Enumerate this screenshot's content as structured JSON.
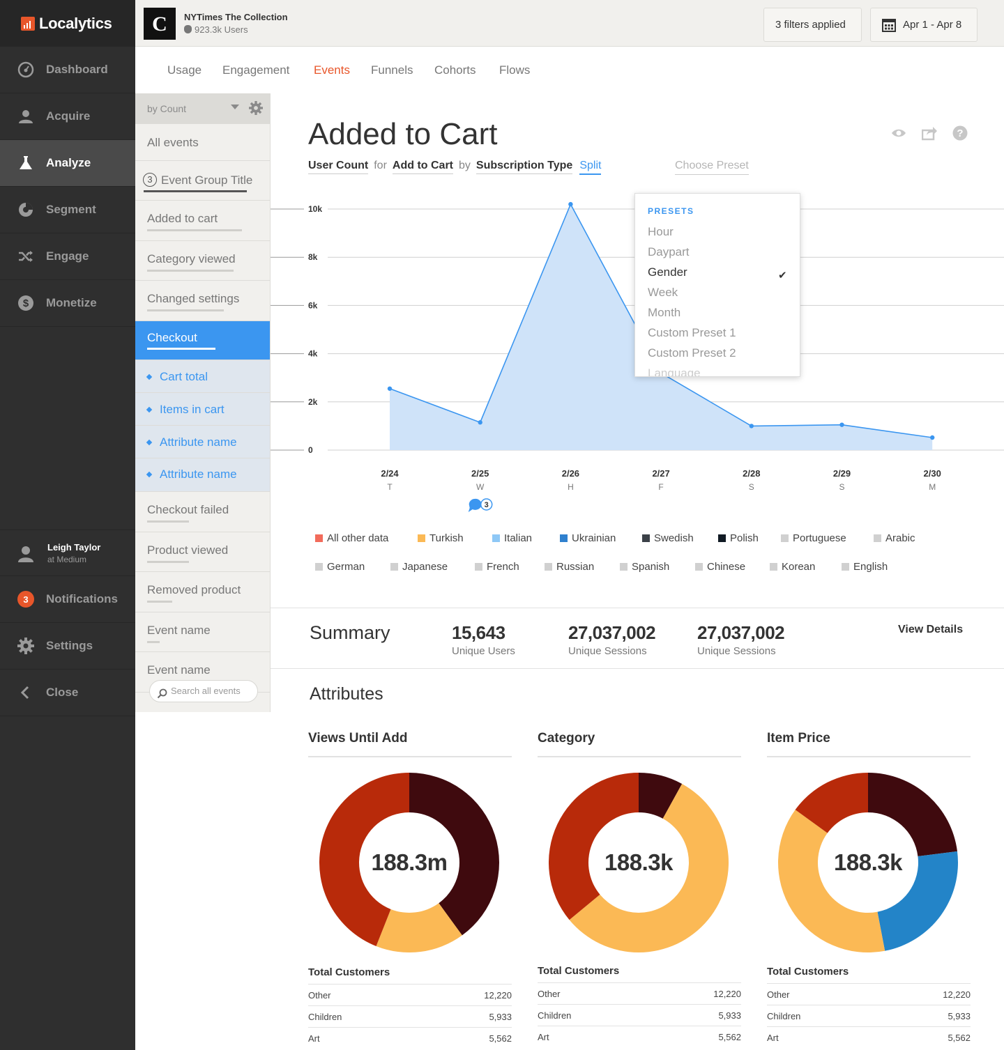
{
  "brand": {
    "name": "Localytics"
  },
  "nav": {
    "items": [
      {
        "label": "Dashboard",
        "icon": "dashboard-gauge-icon"
      },
      {
        "label": "Acquire",
        "icon": "user-icon"
      },
      {
        "label": "Analyze",
        "icon": "flask-icon",
        "active": true
      },
      {
        "label": "Segment",
        "icon": "pie-icon"
      },
      {
        "label": "Engage",
        "icon": "shuffle-icon"
      },
      {
        "label": "Monetize",
        "icon": "dollar-icon"
      }
    ],
    "user": {
      "name": "Leigh Taylor",
      "org": "at Medium"
    },
    "notifications": {
      "label": "Notifications",
      "count": "3"
    },
    "settings": "Settings",
    "close": "Close"
  },
  "topbar": {
    "app_name": "NYTimes The Collection",
    "app_users": "923.3k Users",
    "filters": "3 filters applied",
    "date_range": "Apr 1 - Apr 8"
  },
  "tabs": [
    "Usage",
    "Engagement",
    "Events",
    "Funnels",
    "Cohorts",
    "Flows"
  ],
  "active_tab": "Events",
  "events_panel": {
    "sort_label": "by Count",
    "group_badge": "3",
    "items": [
      "All events",
      "Event Group Title",
      "Added to cart",
      "Category viewed",
      "Changed settings",
      "Checkout",
      "Cart total",
      "Items in cart",
      "Attribute name",
      "Attribute name",
      "Checkout failed",
      "Product viewed",
      "Removed product",
      "Event name",
      "Event name"
    ],
    "search_placeholder": "Search all events"
  },
  "main": {
    "title": "Added to Cart",
    "query": {
      "metric": "User Count",
      "for": "for",
      "event": "Add to Cart",
      "by": "by",
      "attribute": "Subscription Type",
      "split": "Split"
    },
    "choose_preset": "Choose Preset"
  },
  "presets": {
    "header": "PRESETS",
    "options": [
      "Hour",
      "Daypart",
      "Gender",
      "Week",
      "Month",
      "Custom Preset 1",
      "Custom Preset 2",
      "Language"
    ],
    "selected": "Gender"
  },
  "chart_data": {
    "type": "area",
    "x": [
      "2/24",
      "2/25",
      "2/26",
      "2/27",
      "2/28",
      "2/29",
      "2/30"
    ],
    "x_sublabels": [
      "T",
      "W",
      "H",
      "F",
      "S",
      "S",
      "M"
    ],
    "y_ticks": [
      "0",
      "2k",
      "4k",
      "6k",
      "8k",
      "10k"
    ],
    "ylim": [
      0,
      10000
    ],
    "series": [
      {
        "values": [
          2550,
          1150,
          10200,
          3200,
          1000,
          1050,
          520
        ]
      }
    ],
    "annotation": {
      "x": "2/25",
      "count": "3"
    },
    "color": "#3b96f0",
    "fill": "#cfe3f9",
    "grid": true
  },
  "legend": [
    {
      "label": "All other data",
      "color": "#f26b5b"
    },
    {
      "label": "Turkish",
      "color": "#fbb955"
    },
    {
      "label": "Italian",
      "color": "#8ec8f6"
    },
    {
      "label": "Ukrainian",
      "color": "#2f80ce"
    },
    {
      "label": "Swedish",
      "color": "#3b4148"
    },
    {
      "label": "Polish",
      "color": "#111a24"
    },
    {
      "label": "Portuguese",
      "color": "#d0d0d0"
    },
    {
      "label": "Arabic",
      "color": "#d0d0d0"
    },
    {
      "label": "German",
      "color": "#d0d0d0"
    },
    {
      "label": "Japanese",
      "color": "#d0d0d0"
    },
    {
      "label": "French",
      "color": "#d0d0d0"
    },
    {
      "label": "Russian",
      "color": "#d0d0d0"
    },
    {
      "label": "Spanish",
      "color": "#d0d0d0"
    },
    {
      "label": "Chinese",
      "color": "#d0d0d0"
    },
    {
      "label": "Korean",
      "color": "#d0d0d0"
    },
    {
      "label": "English",
      "color": "#d0d0d0"
    }
  ],
  "summary": {
    "title": "Summary",
    "stats": [
      {
        "value": "15,643",
        "label": "Unique Users"
      },
      {
        "value": "27,037,002",
        "label": "Unique Sessions"
      },
      {
        "value": "27,037,002",
        "label": "Unique Sessions"
      }
    ],
    "view_details": "View Details"
  },
  "attributes": {
    "title": "Attributes",
    "columns": [
      {
        "title": "Views Until Add",
        "center": "188.3m",
        "segments": [
          {
            "value": 0.4,
            "color": "#3f0a0e"
          },
          {
            "value": 0.16,
            "color": "#fbb955"
          },
          {
            "value": 0.44,
            "color": "#b82a0a"
          }
        ],
        "table_title": "Total Customers",
        "rows": [
          [
            "Other",
            "12,220"
          ],
          [
            "Children",
            "5,933"
          ],
          [
            "Art",
            "5,562"
          ]
        ]
      },
      {
        "title": "Category",
        "center": "188.3k",
        "segments": [
          {
            "value": 0.08,
            "color": "#3f0a0e"
          },
          {
            "value": 0.56,
            "color": "#fbb955"
          },
          {
            "value": 0.36,
            "color": "#b82a0a"
          }
        ],
        "table_title": "Total Customers",
        "rows": [
          [
            "Other",
            "12,220"
          ],
          [
            "Children",
            "5,933"
          ],
          [
            "Art",
            "5,562"
          ]
        ]
      },
      {
        "title": "Item Price",
        "center": "188.3k",
        "segments": [
          {
            "value": 0.23,
            "color": "#3f0a0e"
          },
          {
            "value": 0.24,
            "color": "#2384c8"
          },
          {
            "value": 0.38,
            "color": "#fbb955"
          },
          {
            "value": 0.15,
            "color": "#b82a0a"
          }
        ],
        "table_title": "Total Customers",
        "rows": [
          [
            "Other",
            "12,220"
          ],
          [
            "Children",
            "5,933"
          ],
          [
            "Art",
            "5,562"
          ]
        ]
      }
    ]
  }
}
